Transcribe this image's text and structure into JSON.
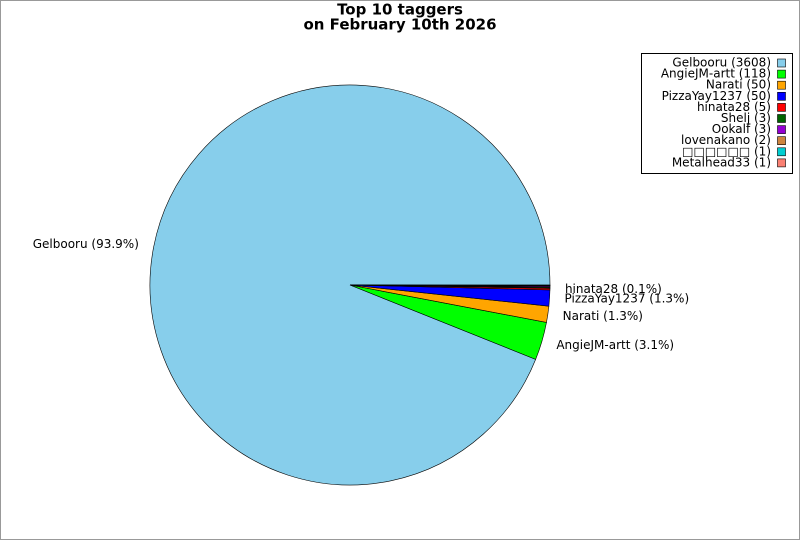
{
  "chart_data": {
    "type": "pie",
    "title": "Top 10 taggers",
    "subtitle": "on February 10th 2026",
    "categories": [
      "Gelbooru",
      "AngieJM-artt",
      "Narati",
      "PizzaYay1237",
      "hinata28",
      "Shelj",
      "Ookalf",
      "lovenakano",
      "□□□□□□",
      "Metalhead33"
    ],
    "values": [
      3608,
      118,
      50,
      50,
      5,
      3,
      3,
      2,
      1,
      1
    ],
    "legend_labels": [
      "Gelbooru (3608)",
      "AngieJM-artt (118)",
      "Narati (50)",
      "PizzaYay1237 (50)",
      "hinata28 (5)",
      "Shelj (3)",
      "Ookalf (3)",
      "lovenakano (2)",
      "□□□□□□ (1)",
      "Metalhead33 (1)"
    ],
    "value_labels": [
      "Gelbooru (93.9%)",
      "AngieJM-artt (3.1%)",
      "Narati (1.3%)",
      "PizzaYay1237 (1.3%)",
      "hinata28 (0.1%)",
      null,
      null,
      null,
      null,
      null
    ],
    "colors": [
      "#87ceeb",
      "#00ff00",
      "#ffa500",
      "#0000ff",
      "#ff0000",
      "#006400",
      "#9400d3",
      "#cd853f",
      "#00ced1",
      "#fa8072"
    ],
    "legend": "top-right"
  }
}
